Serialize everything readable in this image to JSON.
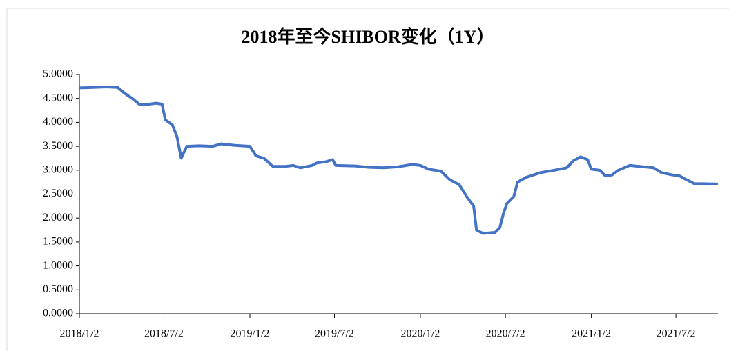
{
  "chart_data": {
    "type": "line",
    "title": "2018年至今SHIBOR变化（1Y）",
    "x": [
      "2018/1/2",
      "2018/2/1",
      "2018/3/1",
      "2018/3/25",
      "2018/4/10",
      "2018/4/25",
      "2018/5/10",
      "2018/6/1",
      "2018/6/15",
      "2018/6/28",
      "2018/7/5",
      "2018/7/20",
      "2018/7/30",
      "2018/8/8",
      "2018/8/20",
      "2018/9/15",
      "2018/10/15",
      "2018/11/1",
      "2018/12/1",
      "2019/1/2",
      "2019/1/15",
      "2019/2/1",
      "2019/2/20",
      "2019/3/20",
      "2019/4/5",
      "2019/4/20",
      "2019/5/15",
      "2019/5/25",
      "2019/6/15",
      "2019/6/28",
      "2019/7/5",
      "2019/8/15",
      "2019/9/15",
      "2019/10/15",
      "2019/11/15",
      "2019/12/15",
      "2020/1/2",
      "2020/1/20",
      "2020/2/15",
      "2020/3/5",
      "2020/3/25",
      "2020/4/10",
      "2020/4/25",
      "2020/5/1",
      "2020/5/15",
      "2020/6/10",
      "2020/6/20",
      "2020/6/28",
      "2020/7/5",
      "2020/7/20",
      "2020/7/28",
      "2020/8/15",
      "2020/9/15",
      "2020/10/15",
      "2020/11/10",
      "2020/11/25",
      "2020/12/10",
      "2020/12/25",
      "2021/1/2",
      "2021/1/20",
      "2021/2/1",
      "2021/2/15",
      "2021/3/1",
      "2021/3/25",
      "2021/4/15",
      "2021/5/15",
      "2021/6/1",
      "2021/6/25",
      "2021/7/10",
      "2021/7/25",
      "2021/8/10",
      "2021/9/30"
    ],
    "series": [
      {
        "name": "SHIBOR 1Y",
        "color": "#4472c4",
        "values": [
          4.72,
          4.73,
          4.74,
          4.73,
          4.6,
          4.5,
          4.38,
          4.38,
          4.4,
          4.38,
          4.05,
          3.95,
          3.7,
          3.25,
          3.5,
          3.51,
          3.5,
          3.55,
          3.52,
          3.5,
          3.3,
          3.25,
          3.08,
          3.08,
          3.1,
          3.05,
          3.1,
          3.15,
          3.18,
          3.22,
          3.1,
          3.09,
          3.06,
          3.05,
          3.07,
          3.12,
          3.1,
          3.02,
          2.98,
          2.8,
          2.7,
          2.45,
          2.25,
          1.75,
          1.68,
          1.7,
          1.8,
          2.1,
          2.3,
          2.45,
          2.75,
          2.85,
          2.95,
          3.0,
          3.05,
          3.2,
          3.28,
          3.22,
          3.02,
          3.0,
          2.88,
          2.9,
          3.0,
          3.1,
          3.08,
          3.05,
          2.95,
          2.9,
          2.88,
          2.8,
          2.72,
          2.71
        ]
      }
    ],
    "xlim": [
      "2018/1/2",
      "2021/9/30"
    ],
    "xticks": [
      "2018/1/2",
      "2018/7/2",
      "2019/1/2",
      "2019/7/2",
      "2020/1/2",
      "2020/7/2",
      "2021/1/2",
      "2021/7/2"
    ],
    "ylim": [
      0,
      5
    ],
    "yticks": [
      {
        "value": 0,
        "label": "0.0000"
      },
      {
        "value": 0.5,
        "label": "0.5000"
      },
      {
        "value": 1,
        "label": "1.0000"
      },
      {
        "value": 1.5,
        "label": "1.5000"
      },
      {
        "value": 2,
        "label": "2.0000"
      },
      {
        "value": 2.5,
        "label": "2.5000"
      },
      {
        "value": 3,
        "label": "3.0000"
      },
      {
        "value": 3.5,
        "label": "3.5000"
      },
      {
        "value": 4,
        "label": "4.0000"
      },
      {
        "value": 4.5,
        "label": "4.5000"
      },
      {
        "value": 5,
        "label": "5.0000"
      }
    ]
  }
}
